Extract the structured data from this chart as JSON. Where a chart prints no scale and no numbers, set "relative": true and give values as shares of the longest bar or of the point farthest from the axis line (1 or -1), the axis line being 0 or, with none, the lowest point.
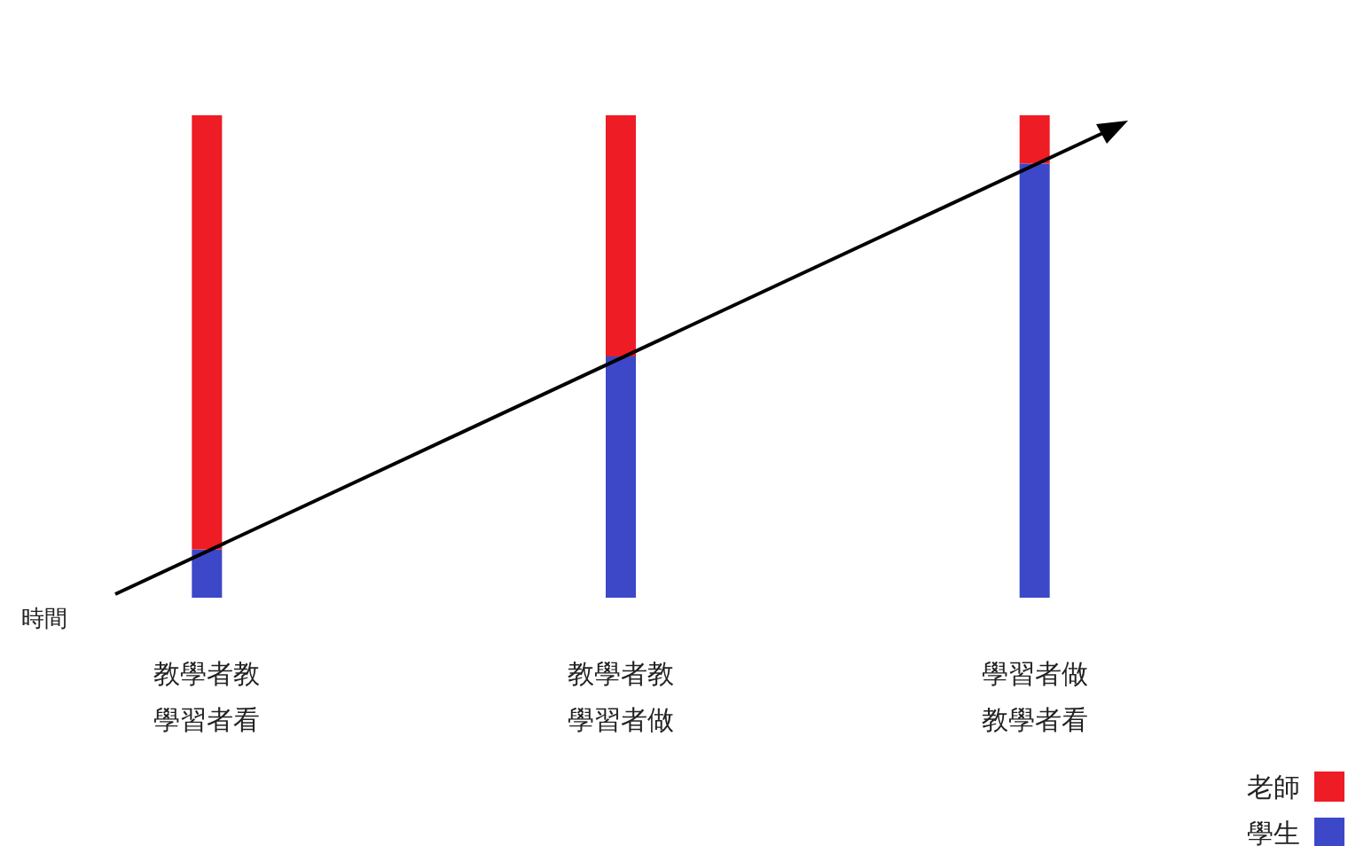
{
  "chart_data": {
    "type": "bar",
    "stacked": true,
    "relative": true,
    "legend": "bottom right",
    "categories": [
      "教學者教學習者看",
      "教學者教學習者做",
      "學習者做教學者看"
    ],
    "series": [
      {
        "name": "學生",
        "color": "#3c48c8",
        "values": [
          0.1,
          0.5,
          0.9
        ]
      },
      {
        "name": "老師",
        "color": "#ee1c25",
        "values": [
          0.9,
          0.5,
          0.1
        ]
      }
    ],
    "annotations": [
      "時間"
    ]
  }
}
